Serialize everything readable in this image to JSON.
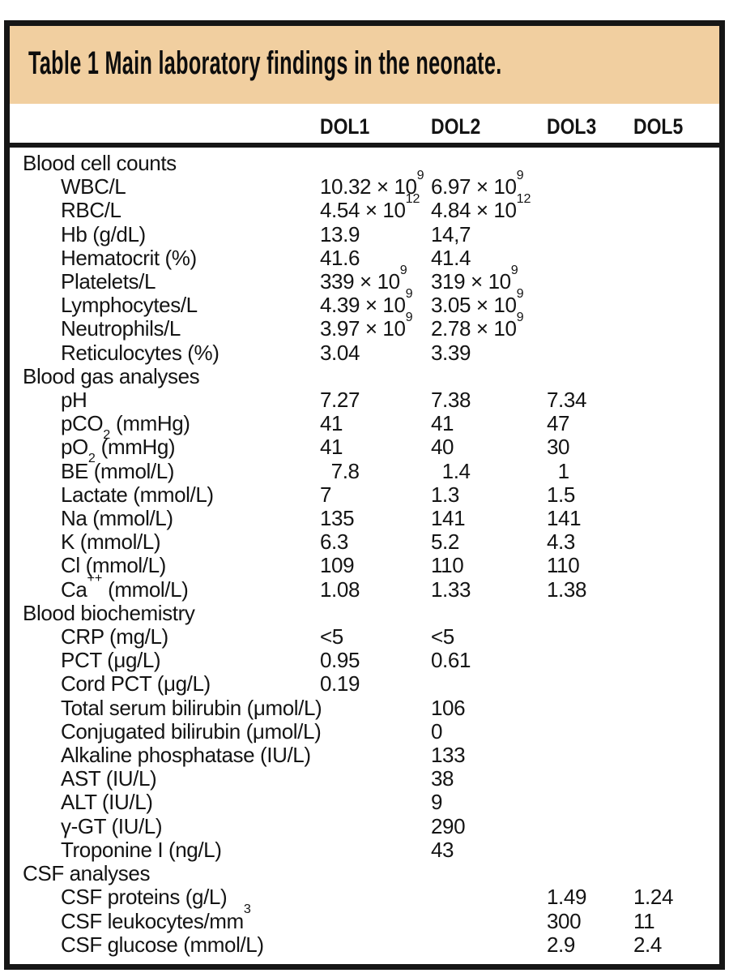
{
  "table": {
    "title": "Table 1 Main laboratory findings in the neonate.",
    "columns": [
      "DOL1",
      "DOL2",
      "DOL3",
      "DOL5"
    ],
    "sections": [
      {
        "title": "Blood cell counts",
        "rows": [
          {
            "label": "WBC/L",
            "values": [
              "10.32 × 10^9^",
              "6.97 × 10^9^",
              "",
              ""
            ]
          },
          {
            "label": "RBC/L",
            "values": [
              "4.54 × 10^12^",
              "4.84 × 10^12^",
              "",
              ""
            ]
          },
          {
            "label": "Hb (g/dL)",
            "values": [
              "13.9",
              "14,7",
              "",
              ""
            ]
          },
          {
            "label": "Hematocrit (%)",
            "values": [
              "41.6",
              "41.4",
              "",
              ""
            ]
          },
          {
            "label": "Platelets/L",
            "values": [
              "339 × 10^9^",
              "319 × 10^9^",
              "",
              ""
            ]
          },
          {
            "label": "Lymphocytes/L",
            "values": [
              "4.39 × 10^9^",
              "3.05 × 10^9^",
              "",
              ""
            ]
          },
          {
            "label": "Neutrophils/L",
            "values": [
              "3.97 × 10^9^",
              "2.78 × 10^9^",
              "",
              ""
            ]
          },
          {
            "label": "Reticulocytes (%)",
            "values": [
              "3.04",
              "3.39",
              "",
              ""
            ]
          }
        ]
      },
      {
        "title": "Blood gas analyses",
        "rows": [
          {
            "label": "pH",
            "values": [
              "7.27",
              "7.38",
              "7.34",
              ""
            ]
          },
          {
            "label": "pCO~2~ (mmHg)",
            "values": [
              "41",
              "41",
              "47",
              ""
            ]
          },
          {
            "label": "pO~2~ (mmHg)",
            "values": [
              "41",
              "40",
              "30",
              ""
            ]
          },
          {
            "label": "BE (mmol/L)",
            "values": [
              "  7.8",
              "  1.4",
              "  1",
              ""
            ]
          },
          {
            "label": "Lactate (mmol/L)",
            "values": [
              "7",
              "1.3",
              "1.5",
              ""
            ]
          },
          {
            "label": "Na (mmol/L)",
            "values": [
              "135",
              "141",
              "141",
              ""
            ]
          },
          {
            "label": "K (mmol/L)",
            "values": [
              "6.3",
              "5.2",
              "4.3",
              ""
            ]
          },
          {
            "label": "Cl (mmol/L)",
            "values": [
              "109",
              "110",
              "110",
              ""
            ]
          },
          {
            "label": "Ca^++^ (mmol/L)",
            "values": [
              "1.08",
              "1.33",
              "1.38",
              ""
            ]
          }
        ]
      },
      {
        "title": "Blood biochemistry",
        "rows": [
          {
            "label": "CRP (mg/L)",
            "values": [
              "<5",
              "<5",
              "",
              ""
            ]
          },
          {
            "label": "PCT (μg/L)",
            "values": [
              "0.95",
              "0.61",
              "",
              ""
            ]
          },
          {
            "label": "Cord PCT (μg/L)",
            "values": [
              "0.19",
              "",
              "",
              ""
            ]
          },
          {
            "label": "Total serum bilirubin (μmol/L)",
            "values": [
              "",
              "106",
              "",
              ""
            ]
          },
          {
            "label": "Conjugated bilirubin (μmol/L)",
            "values": [
              "",
              "0",
              "",
              ""
            ]
          },
          {
            "label": "Alkaline phosphatase (IU/L)",
            "values": [
              "",
              "133",
              "",
              ""
            ]
          },
          {
            "label": "AST (IU/L)",
            "values": [
              "",
              "38",
              "",
              ""
            ]
          },
          {
            "label": "ALT (IU/L)",
            "values": [
              "",
              "9",
              "",
              ""
            ]
          },
          {
            "label": "γ-GT (IU/L)",
            "values": [
              "",
              "290",
              "",
              ""
            ]
          },
          {
            "label": "Troponine I (ng/L)",
            "values": [
              "",
              "43",
              "",
              ""
            ]
          }
        ]
      },
      {
        "title": "CSF analyses",
        "rows": [
          {
            "label": "CSF proteins (g/L)",
            "values": [
              "",
              "",
              "1.49",
              "1.24"
            ]
          },
          {
            "label": "CSF leukocytes/mm^3^",
            "values": [
              "",
              "",
              "300",
              "11"
            ]
          },
          {
            "label": "CSF glucose (mmol/L)",
            "values": [
              "",
              "",
              "2.9",
              "2.4"
            ]
          }
        ]
      }
    ]
  },
  "colors": {
    "title_band": "#F1CFA0",
    "border": "#161616",
    "text": "#141414"
  }
}
